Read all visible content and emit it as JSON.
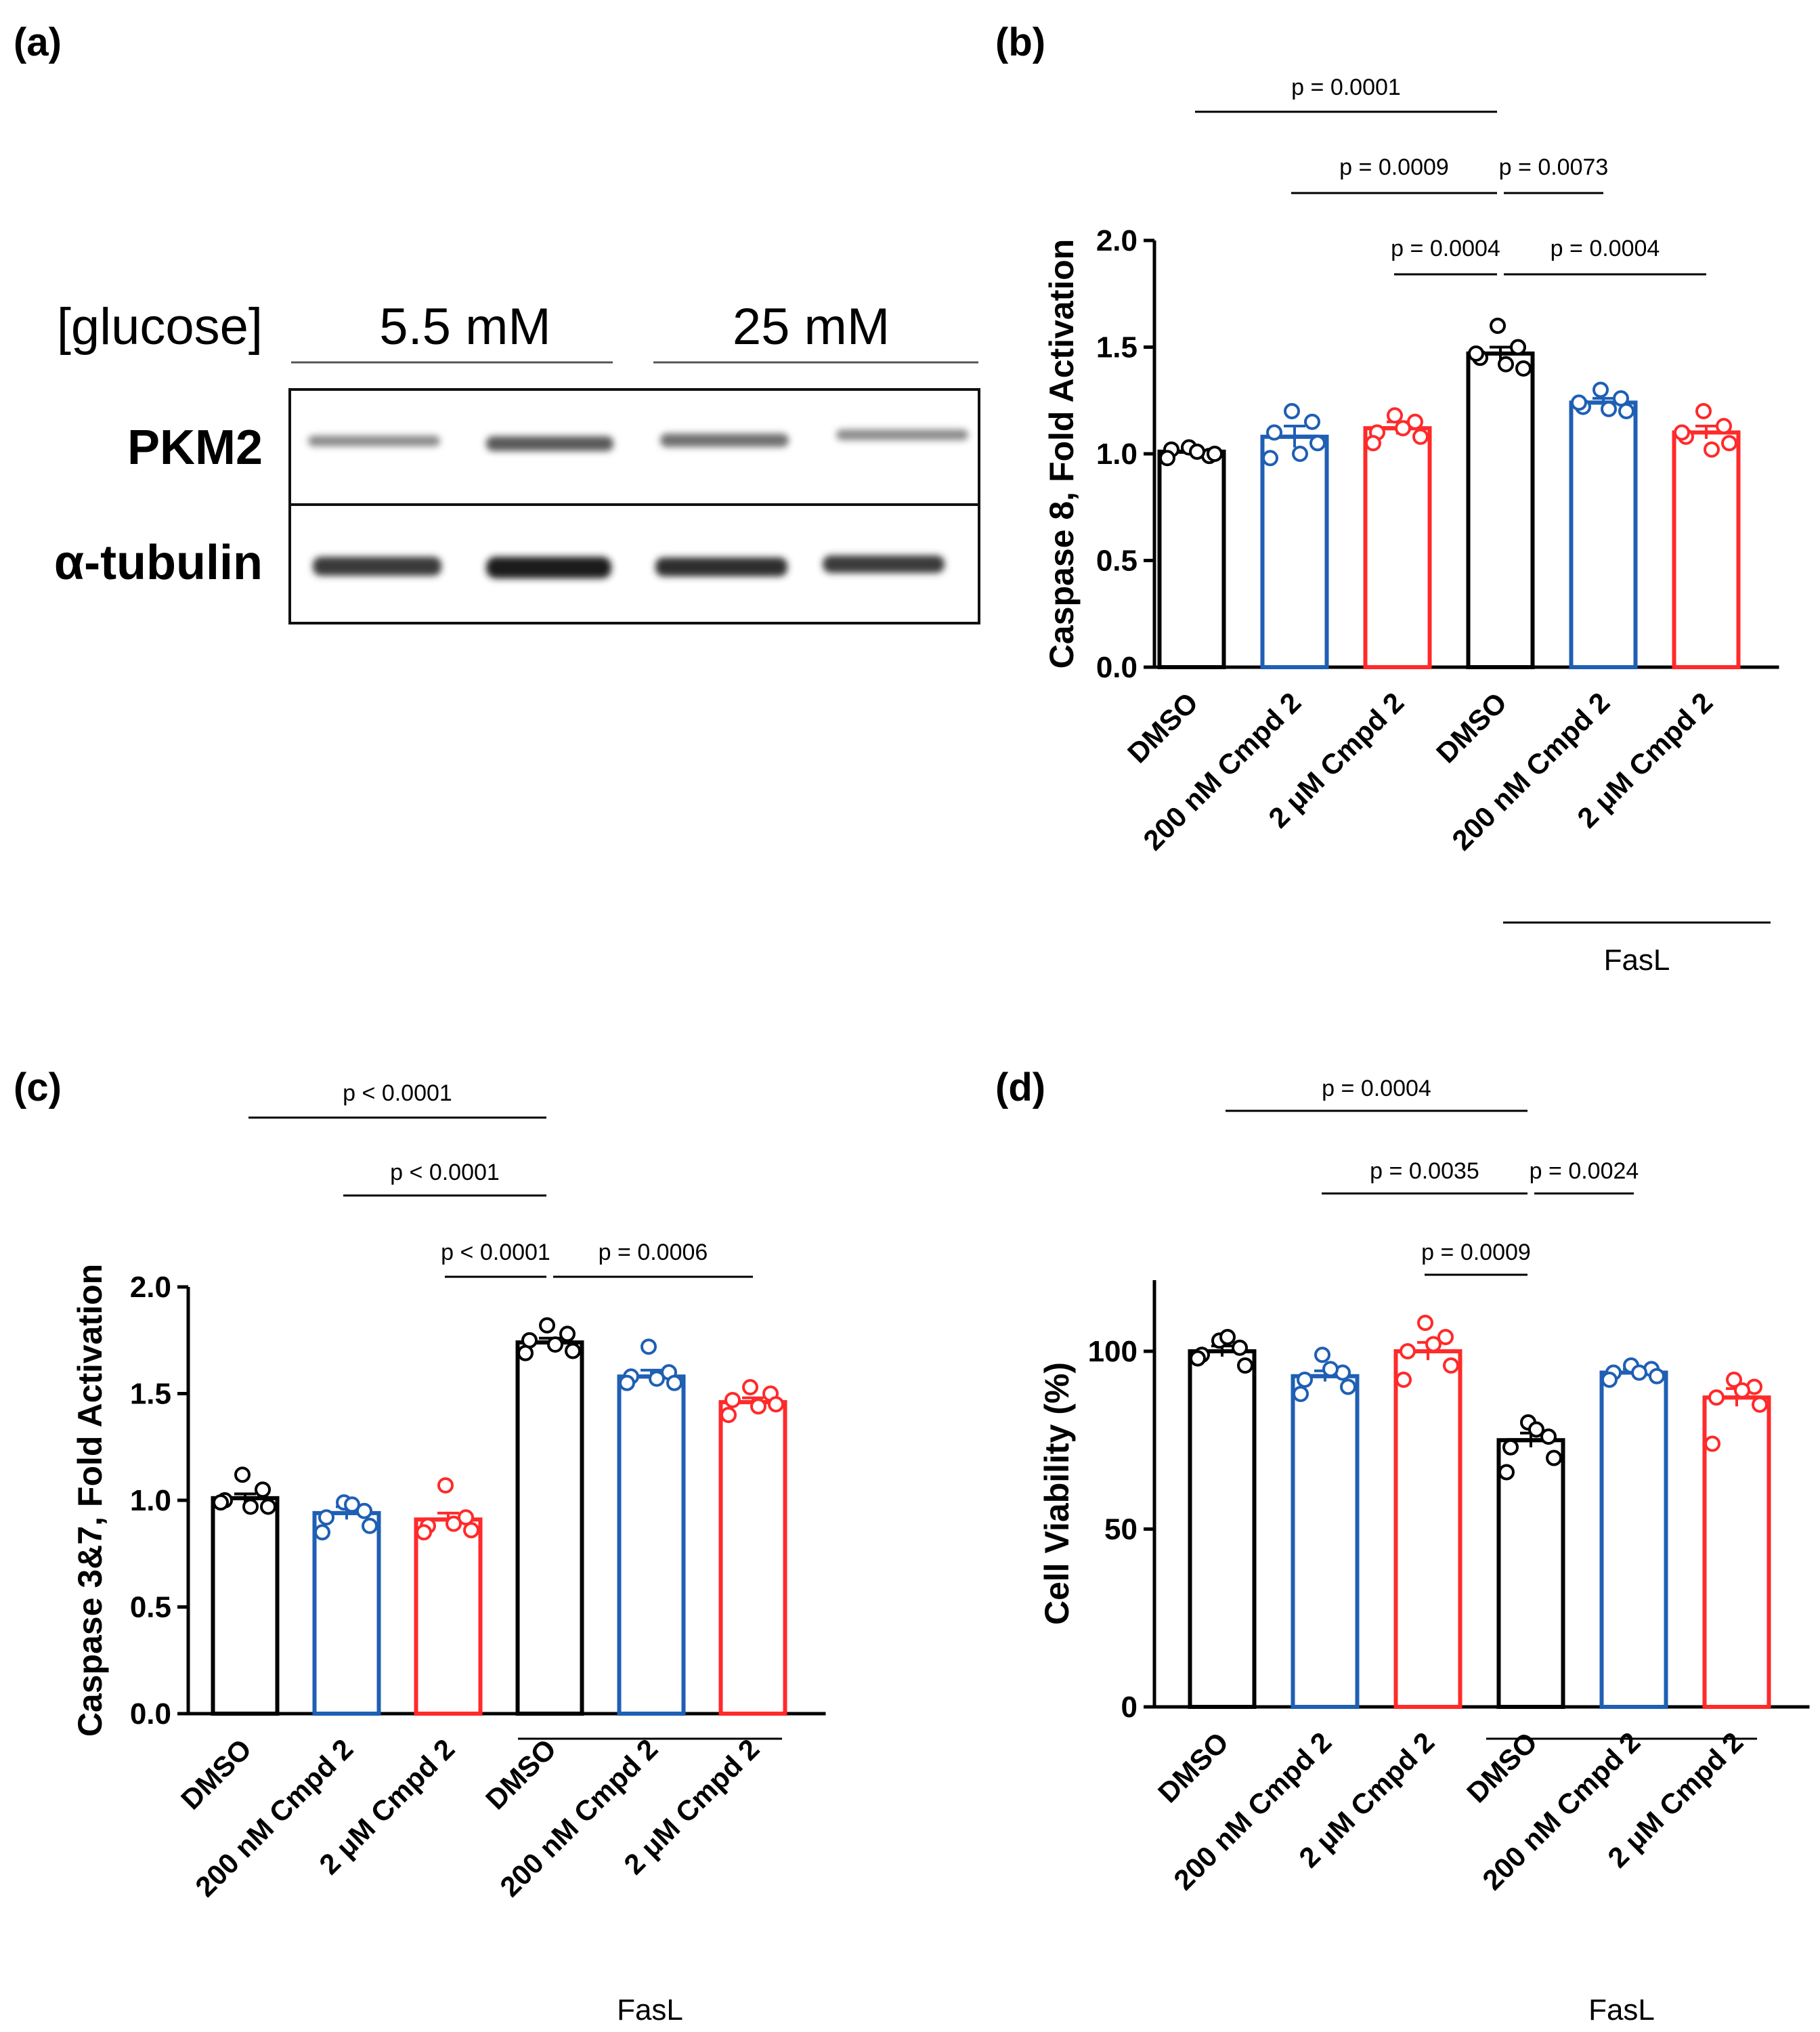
{
  "panel_labels": {
    "a": "(a)",
    "b": "(b)",
    "c": "(c)",
    "d": "(d)"
  },
  "blot": {
    "condition_label": "[glucose]",
    "groups": [
      "5.5 mM",
      "25 mM"
    ],
    "rows": [
      "PKM2",
      "α-tubulin"
    ]
  },
  "colors": {
    "dmso": "#000000",
    "cmpd_200nM": "#1f5fb4",
    "cmpd_2uM": "#ff2a2a"
  },
  "chart_data": [
    {
      "id": "b",
      "type": "bar",
      "ylabel": "Caspase 8, Fold  Activation",
      "ylim": [
        0,
        2.0
      ],
      "yticks": [
        "0.0",
        "0.5",
        "1.0",
        "1.5",
        "2.0"
      ],
      "categories": [
        "DMSO",
        "200 nM Cmpd 2",
        "2 μM Cmpd 2",
        "DMSO",
        "200 nM Cmpd 2",
        "2 μM Cmpd 2"
      ],
      "values": [
        1.01,
        1.08,
        1.12,
        1.47,
        1.24,
        1.1
      ],
      "sem": [
        0.02,
        0.05,
        0.03,
        0.03,
        0.02,
        0.03
      ],
      "points": [
        [
          1.03,
          0.99,
          1.02,
          1.0,
          0.98,
          1.01
        ],
        [
          1.2,
          1.15,
          1.1,
          1.05,
          0.98,
          1.0
        ],
        [
          1.18,
          1.15,
          1.1,
          1.08,
          1.05,
          1.12
        ],
        [
          1.6,
          1.5,
          1.45,
          1.4,
          1.47,
          1.42
        ],
        [
          1.3,
          1.26,
          1.22,
          1.2,
          1.24,
          1.21
        ],
        [
          1.2,
          1.13,
          1.08,
          1.05,
          1.1,
          1.02
        ]
      ],
      "group_label": "FasL",
      "comparisons": [
        {
          "from": 0,
          "to": 3,
          "label": "p = 0.0001"
        },
        {
          "from": 1,
          "to": 3,
          "label": "p = 0.0009"
        },
        {
          "from": 3,
          "to": 4,
          "label": "p = 0.0073"
        },
        {
          "from": 2,
          "to": 3,
          "label": "p = 0.0004"
        },
        {
          "from": 3,
          "to": 5,
          "label": "p = 0.0004"
        }
      ]
    },
    {
      "id": "c",
      "type": "bar",
      "ylabel": "Caspase 3&7, Fold  Activation",
      "ylim": [
        0,
        2.0
      ],
      "yticks": [
        "0.0",
        "0.5",
        "1.0",
        "1.5",
        "2.0"
      ],
      "categories": [
        "DMSO",
        "200 nM Cmpd 2",
        "2 μM Cmpd 2",
        "DMSO",
        "200 nM Cmpd 2",
        "2 μM Cmpd 2"
      ],
      "values": [
        1.01,
        0.94,
        0.91,
        1.74,
        1.58,
        1.46
      ],
      "sem": [
        0.02,
        0.03,
        0.03,
        0.02,
        0.03,
        0.02
      ],
      "points": [
        [
          1.12,
          1.05,
          1.0,
          0.97,
          0.99,
          0.97
        ],
        [
          0.99,
          0.95,
          0.92,
          0.88,
          0.85,
          0.98
        ],
        [
          1.07,
          0.92,
          0.88,
          0.86,
          0.85,
          0.89
        ],
        [
          1.82,
          1.78,
          1.75,
          1.7,
          1.69,
          1.73
        ],
        [
          1.72,
          1.6,
          1.58,
          1.55,
          1.55,
          1.57
        ],
        [
          1.53,
          1.5,
          1.47,
          1.45,
          1.4,
          1.44
        ]
      ],
      "group_label": "FasL",
      "comparisons": [
        {
          "from": 0,
          "to": 3,
          "label": "p < 0.0001"
        },
        {
          "from": 1,
          "to": 3,
          "label": "p < 0.0001"
        },
        {
          "from": 2,
          "to": 3,
          "label": "p < 0.0001"
        },
        {
          "from": 3,
          "to": 5,
          "label": "p = 0.0006"
        }
      ]
    },
    {
      "id": "d",
      "type": "bar",
      "ylabel": "Cell Viability (%)",
      "ylim": [
        0,
        120
      ],
      "yticks": [
        "0",
        "50",
        "100"
      ],
      "yticks_values": [
        0,
        50,
        100
      ],
      "categories": [
        "DMSO",
        "200 nM Cmpd 2",
        "2 μM Cmpd 2",
        "DMSO",
        "200 nM Cmpd 2",
        "2 μM Cmpd 2"
      ],
      "values": [
        100,
        93,
        100,
        75,
        94,
        87
      ],
      "sem": [
        1.5,
        1.5,
        2.5,
        2.0,
        1.0,
        2.5
      ],
      "points": [
        [
          103,
          101,
          99,
          96,
          98,
          104
        ],
        [
          99,
          94,
          92,
          90,
          88,
          95
        ],
        [
          108,
          104,
          100,
          96,
          92,
          102
        ],
        [
          80,
          76,
          73,
          70,
          66,
          78
        ],
        [
          96,
          95,
          94,
          93,
          92,
          94
        ],
        [
          92,
          90,
          87,
          85,
          74,
          89
        ]
      ],
      "group_label": "FasL",
      "comparisons": [
        {
          "from": 0,
          "to": 3,
          "label": "p = 0.0004"
        },
        {
          "from": 1,
          "to": 3,
          "label": "p = 0.0035"
        },
        {
          "from": 3,
          "to": 4,
          "label": "p = 0.0024"
        },
        {
          "from": 2,
          "to": 3,
          "label": "p = 0.0009"
        }
      ]
    }
  ]
}
